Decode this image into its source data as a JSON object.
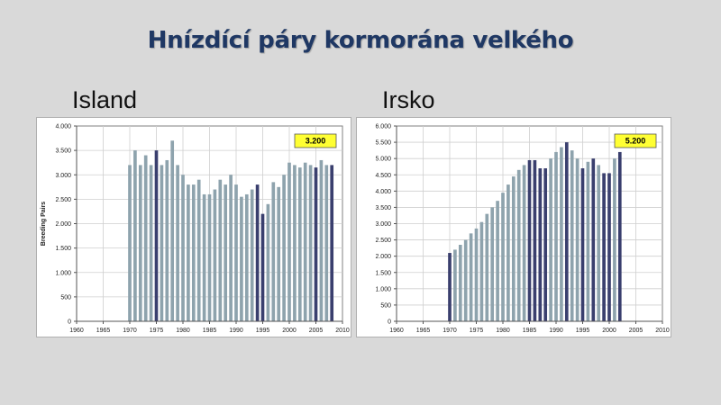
{
  "slide": {
    "title": "Hnízdící páry kormorána velkého",
    "left_title": "Island",
    "right_title": "Irsko"
  },
  "colors": {
    "background": "#d9d9d9",
    "light_bar": "#8ea3ad",
    "dark_bar": "#3a3f6e",
    "callout": "#ffff33"
  },
  "chart_data": [
    {
      "type": "bar",
      "title": "",
      "xlabel": "",
      "ylabel": "Breeding Pairs",
      "xlim": [
        1960,
        2010
      ],
      "ylim": [
        0,
        4000
      ],
      "x_ticks": [
        1960,
        1965,
        1970,
        1975,
        1980,
        1985,
        1990,
        1995,
        2000,
        2005,
        2010
      ],
      "y_ticks": [
        0,
        500,
        1000,
        1500,
        2000,
        2500,
        3000,
        3500,
        4000
      ],
      "y_tick_labels": [
        "0",
        "500",
        "1.000",
        "1.500",
        "2.000",
        "2.500",
        "3.000",
        "3.500",
        "4.000"
      ],
      "grid": true,
      "callout": "3.200",
      "x": [
        1970,
        1971,
        1972,
        1973,
        1974,
        1975,
        1976,
        1977,
        1978,
        1979,
        1980,
        1981,
        1982,
        1983,
        1984,
        1985,
        1986,
        1987,
        1988,
        1989,
        1990,
        1991,
        1992,
        1993,
        1994,
        1995,
        1996,
        1997,
        1998,
        1999,
        2000,
        2001,
        2002,
        2003,
        2004,
        2005,
        2006,
        2007,
        2008
      ],
      "values": [
        3200,
        3500,
        3200,
        3400,
        3200,
        3500,
        3200,
        3300,
        3700,
        3200,
        3000,
        2800,
        2800,
        2900,
        2600,
        2600,
        2700,
        2900,
        2800,
        3000,
        2800,
        2550,
        2600,
        2700,
        2800,
        2200,
        2400,
        2850,
        2750,
        3000,
        3250,
        3200,
        3150,
        3250,
        3200,
        3150,
        3300,
        3200,
        3200
      ],
      "highlighted": [
        1975,
        1994,
        1995,
        2005,
        2008
      ]
    },
    {
      "type": "bar",
      "title": "",
      "xlabel": "",
      "ylabel": "",
      "xlim": [
        1960,
        2010
      ],
      "ylim": [
        0,
        6000
      ],
      "x_ticks": [
        1960,
        1965,
        1970,
        1975,
        1980,
        1985,
        1990,
        1995,
        2000,
        2005,
        2010
      ],
      "y_ticks": [
        0,
        500,
        1000,
        1500,
        2000,
        2500,
        3000,
        3500,
        4000,
        4500,
        5000,
        5500,
        6000
      ],
      "y_tick_labels": [
        "0",
        "500",
        "1.000",
        "1.500",
        "2.000",
        "2.500",
        "3.000",
        "3.500",
        "4.000",
        "4.500",
        "5.000",
        "5.500",
        "6.000"
      ],
      "grid": true,
      "callout": "5.200",
      "x": [
        1970,
        1971,
        1972,
        1973,
        1974,
        1975,
        1976,
        1977,
        1978,
        1979,
        1980,
        1981,
        1982,
        1983,
        1984,
        1985,
        1986,
        1987,
        1988,
        1989,
        1990,
        1991,
        1992,
        1993,
        1994,
        1995,
        1996,
        1997,
        1998,
        1999,
        2000,
        2001,
        2002
      ],
      "values": [
        2100,
        2200,
        2350,
        2500,
        2700,
        2850,
        3050,
        3300,
        3500,
        3700,
        3950,
        4200,
        4450,
        4650,
        4800,
        4950,
        4950,
        4700,
        4700,
        5000,
        5200,
        5350,
        5500,
        5250,
        5000,
        4700,
        4900,
        5000,
        4800,
        4550,
        4550,
        5000,
        5200
      ],
      "highlighted": [
        1970,
        1985,
        1986,
        1987,
        1988,
        1992,
        1995,
        1997,
        1999,
        2000,
        2002
      ]
    }
  ]
}
